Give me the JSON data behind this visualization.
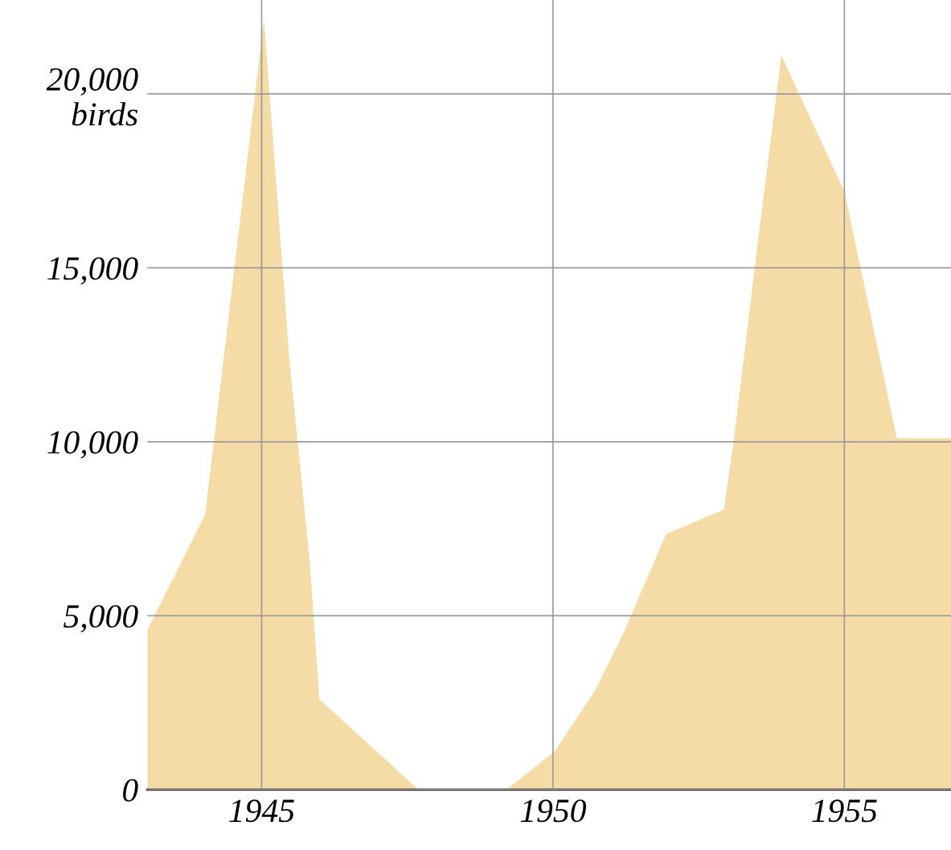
{
  "chart_data": {
    "type": "area",
    "x": [
      1943.04,
      1944.03,
      1945.04,
      1945.48,
      1945.83,
      1945.99,
      1947.69,
      1949.2,
      1950.03,
      1950.72,
      1951.2,
      1951.94,
      1952.93,
      1953.1,
      1953.52,
      1953.92,
      1955.0,
      1955.9,
      1956.83
    ],
    "values": [
      4600,
      7900,
      22150,
      12300,
      6500,
      2600,
      0,
      0,
      1100,
      2850,
      4460,
      7350,
      8050,
      10000,
      15800,
      21100,
      17200,
      10100,
      10100
    ],
    "color": "#f5dca6",
    "xlim": [
      1943.04,
      1956.83
    ],
    "ylim": [
      0,
      22700
    ],
    "xticks": [
      1945,
      1950,
      1955
    ],
    "yticks": [
      0,
      {
        "value": 5000,
        "label": "5,000"
      },
      {
        "value": 10000,
        "label": "10,000"
      },
      {
        "value": 15000,
        "label": "15,000"
      },
      {
        "value": 20000,
        "label": "20,000\nbirds"
      }
    ],
    "grid": true
  }
}
